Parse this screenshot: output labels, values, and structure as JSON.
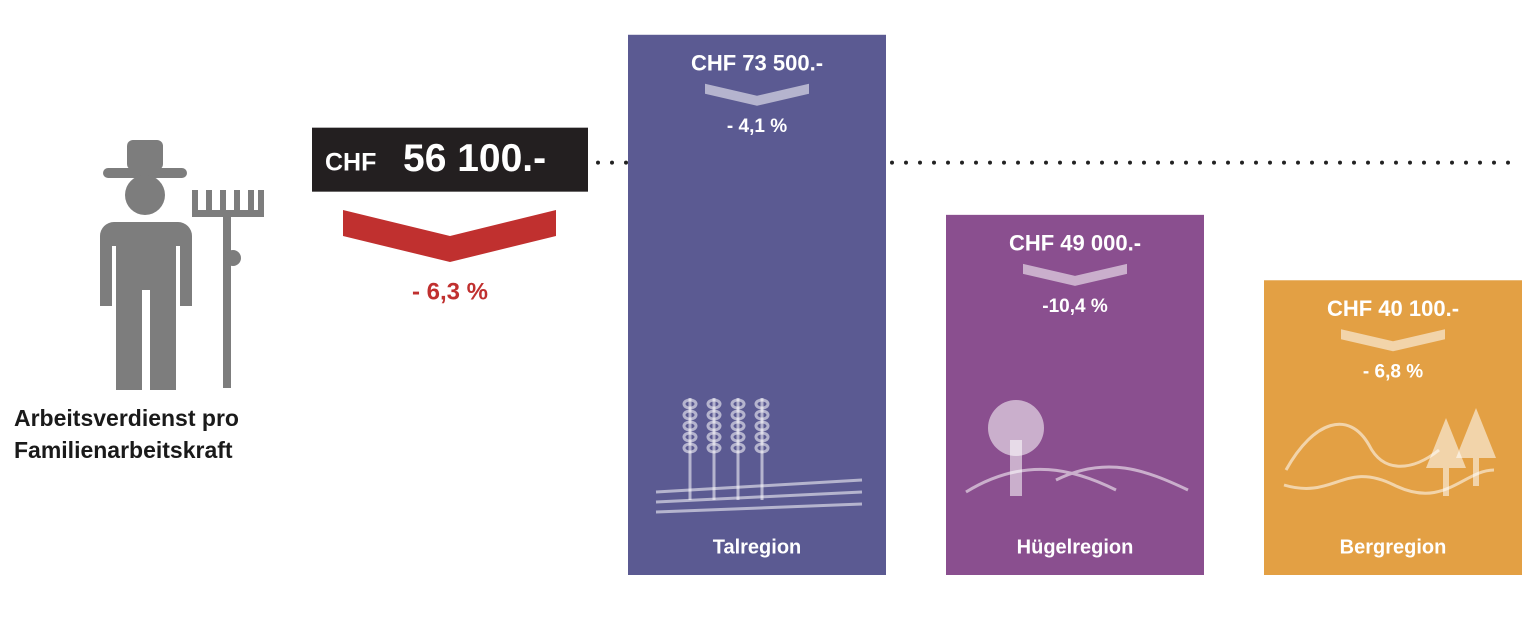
{
  "chart_data": {
    "type": "bar",
    "label": "Arbeitsverdienst pro Familienarbeitskraft",
    "currency": "CHF",
    "average": 56100,
    "average_label": "56 100.-",
    "average_change": -6.3,
    "average_change_label": "- 6,3 %",
    "average_color": "#231f20",
    "change_color": "#c0302f",
    "categories": [
      "Talregion",
      "Hügelregion",
      "Bergregion"
    ],
    "values": [
      73500,
      49000,
      40100
    ],
    "value_labels": [
      "CHF 73 500.-",
      "CHF 49 000.-",
      "CHF 40 100.-"
    ],
    "changes": [
      -4.1,
      -10.4,
      -6.8
    ],
    "change_labels": [
      "- 4,1 %",
      "-10,4 %",
      "- 6,8 %"
    ],
    "colors": [
      "#5b5a92",
      "#8a4f8f",
      "#e3a044"
    ]
  }
}
